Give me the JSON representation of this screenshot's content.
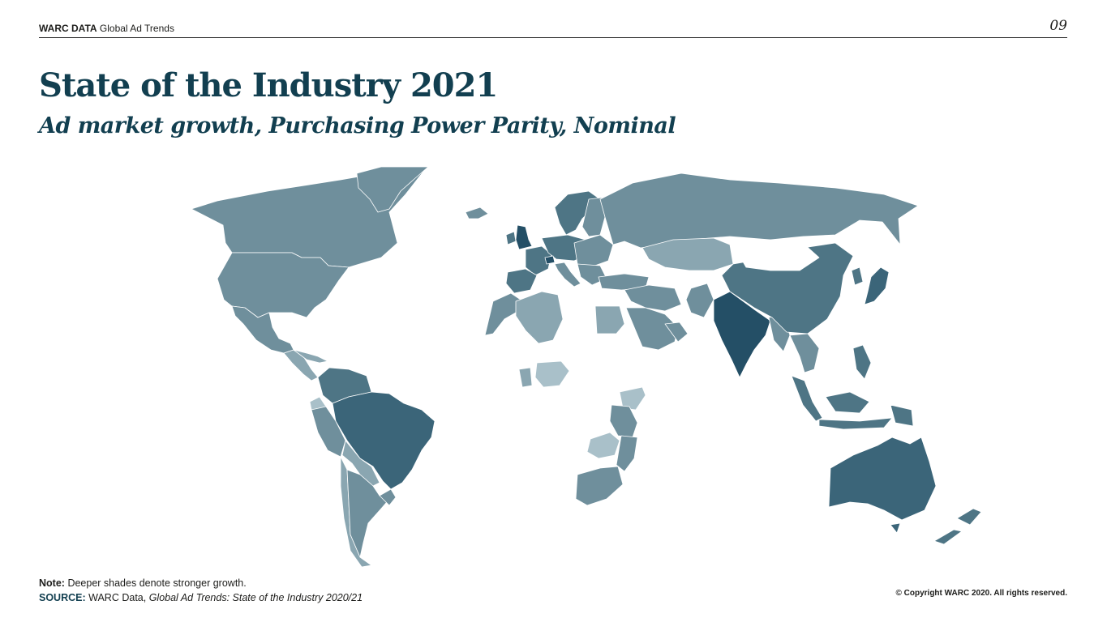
{
  "header": {
    "brand_bold": "WARC DATA",
    "brand_rest": "Global Ad Trends",
    "page_number": "09"
  },
  "title": "State of the Industry 2021",
  "subtitle": "Ad market growth, Purchasing Power Parity, Nominal",
  "map": {
    "colors": {
      "background": "#ffffff",
      "weak": "#a9c0c9",
      "light": "#8aa6b1",
      "medium": "#6f8f9c",
      "strong": "#4e7585",
      "stronger": "#3b6579",
      "strongest": "#244f66"
    }
  },
  "footer": {
    "note_label": "Note:",
    "note_text": "Deeper shades denote stronger growth.",
    "source_label": "SOURCE:",
    "source_text": "WARC Data,",
    "source_title": "Global Ad Trends: State of the Industry 2020/21",
    "copyright": "© Copyright WARC 2020. All rights reserved."
  }
}
